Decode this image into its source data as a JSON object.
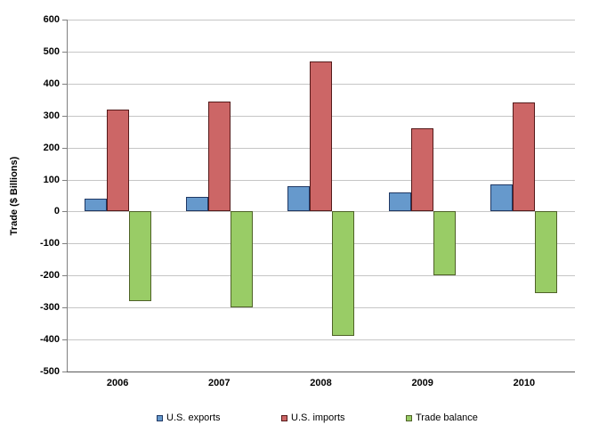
{
  "chart_data": {
    "type": "bar",
    "title": "",
    "categories": [
      "2006",
      "2007",
      "2008",
      "2009",
      "2010"
    ],
    "series": [
      {
        "name": "U.S. exports",
        "values": [
          40,
          45,
          80,
          60,
          85
        ],
        "fill": "#6699CC",
        "border": "#1F3864"
      },
      {
        "name": "U.S. imports",
        "values": [
          320,
          345,
          470,
          260,
          340
        ],
        "fill": "#CC6666",
        "border": "#551A1A"
      },
      {
        "name": "Trade balance",
        "values": [
          -280,
          -300,
          -390,
          -200,
          -255
        ],
        "fill": "#99CC66",
        "border": "#4F6228"
      }
    ],
    "xlabel": "",
    "ylabel": "Trade ($ Billions)",
    "ylim": [
      -500,
      600
    ],
    "yticks": [
      600,
      500,
      400,
      300,
      200,
      100,
      0,
      -100,
      -200,
      -300,
      -400,
      -500
    ],
    "grid": true,
    "legend_position": "bottom"
  },
  "style_colors": {
    "gridline": "#C6C6C6",
    "y_axis_line": "#808080",
    "x_axis_line": "#595959",
    "tick": "#808080",
    "background": "#FFFFFF",
    "text": "#000000"
  },
  "legend": {
    "items": [
      {
        "label": "U.S. exports"
      },
      {
        "label": "U.S. imports"
      },
      {
        "label": "Trade balance"
      }
    ]
  }
}
